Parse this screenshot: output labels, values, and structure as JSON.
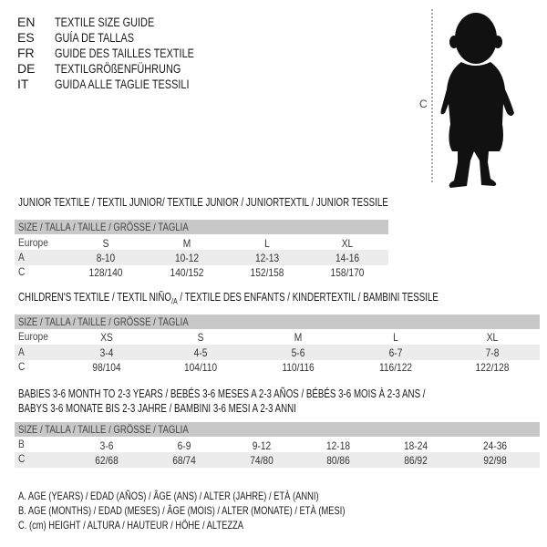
{
  "header": {
    "lines": [
      {
        "code": "EN",
        "text": "TEXTILE SIZE GUIDE"
      },
      {
        "code": "ES",
        "text": "GUÍA DE TALLAS"
      },
      {
        "code": "FR",
        "text": "GUIDE DES TAILLES TEXTILE"
      },
      {
        "code": "DE",
        "text": "TEXTILGRÖßENFÜHRUNG"
      },
      {
        "code": "IT",
        "text": "GUIDA ALLE TAGLIE TESSILI"
      }
    ],
    "figure_label": "C"
  },
  "junior": {
    "title": "JUNIOR TEXTILE / TEXTIL JUNIOR/ TEXTILE JUNIOR / JUNIORTEXTIL / JUNIOR TESSILE",
    "header": "SIZE / TALLA / TAILLE / GRÖSSE / TAGLIA",
    "rows": [
      {
        "label": "Europe",
        "values": [
          "S",
          "M",
          "L",
          "XL"
        ]
      },
      {
        "label": "A",
        "values": [
          "8-10",
          "10-12",
          "12-13",
          "14-16"
        ]
      },
      {
        "label": "C",
        "values": [
          "128/140",
          "140/152",
          "152/158",
          "158/170"
        ]
      }
    ]
  },
  "children": {
    "title": "CHILDREN'S TEXTILE / TEXTIL NIÑO",
    "title_sub": "/A",
    "title_rest": " / TEXTILE DES ENFANTS / KINDERTEXTIL / BAMBINI TESSILE",
    "header": "SIZE / TALLA / TAILLE / GRÖSSE / TAGLIA",
    "rows": [
      {
        "label": "Europe",
        "values": [
          "XS",
          "S",
          "M",
          "L",
          "XL"
        ]
      },
      {
        "label": "A",
        "values": [
          "3-4",
          "4-5",
          "5-6",
          "6-7",
          "7-8"
        ]
      },
      {
        "label": "C",
        "values": [
          "98/104",
          "104/110",
          "110/116",
          "116/122",
          "122/128"
        ]
      }
    ]
  },
  "babies": {
    "title_line1": "BABIES 3-6 MONTH TO 2-3 YEARS / BEBÉS 3-6 MESES A 2-3 AÑOS / BÉBÉS 3-6 MOIS À 2-3 ANS /",
    "title_line2": "BABYS 3-6 MONATE BIS 2-3 JAHRE / BAMBINI 3-6 MESI A 2-3 ANNI",
    "header": "SIZE / TALLA / TAILLE / GRÖSSE / TAGLIA",
    "rows": [
      {
        "label": "B",
        "values": [
          "3-6",
          "6-9",
          "9-12",
          "12-18",
          "18-24",
          "24-36"
        ]
      },
      {
        "label": "C",
        "values": [
          "62/68",
          "68/74",
          "74/80",
          "80/86",
          "86/92",
          "92/98"
        ]
      }
    ]
  },
  "legend": [
    "A. AGE (YEARS) / EDAD (AÑOS) / ÂGE (ANS) / ALTER (JAHRE) / ETÀ (ANNI)",
    "B. AGE (MONTHS) / EDAD (MESES) / ÂGE (MOIS) / ALTER (MONATE) / ETÀ (MESI)",
    "C. (cm) HEIGHT / ALTURA / HAUTEUR / HÖHE / ALTEZZA"
  ],
  "colors": {
    "header_bar": "#c8c8c8",
    "row_shade": "#ececec"
  }
}
